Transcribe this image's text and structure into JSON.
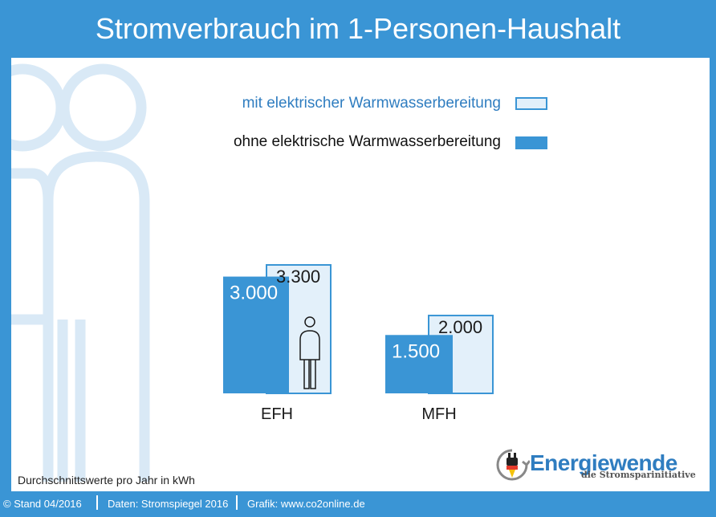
{
  "title": "Stromverbrauch im 1-Personen-Haushalt",
  "legend": [
    {
      "label": "mit elektrischer Warmwasserbereitung",
      "color": "#e3f0fa",
      "text_color": "#2f7dc0"
    },
    {
      "label": "ohne elektrische Warmwasserbereitung",
      "color": "#3a95d5",
      "text_color": "#111111"
    }
  ],
  "chart_data": {
    "type": "bar",
    "categories": [
      "EFH",
      "MFH"
    ],
    "series": [
      {
        "name": "ohne elektrische Warmwasserbereitung",
        "values": [
          3000,
          1500
        ],
        "labels": [
          "3.000",
          "1.500"
        ]
      },
      {
        "name": "mit elektrischer Warmwasserbereitung",
        "values": [
          3300,
          2000
        ],
        "labels": [
          "3.300",
          "2.000"
        ]
      }
    ],
    "ylim": [
      0,
      3300
    ],
    "grid": false,
    "legend_position": "top-right",
    "note": "Durchschnittswerte pro Jahr in kWh"
  },
  "footer": {
    "stand": "© Stand 04/2016",
    "daten": "Daten: Stromspiegel 2016",
    "grafik": "Grafik: www.co2online.de"
  },
  "logo": {
    "word": "Energiewende",
    "sub": "die Stromsparinitiative"
  },
  "colors": {
    "accent": "#3a95d5",
    "light": "#e3f0fa",
    "figure": "#d9e9f6"
  }
}
